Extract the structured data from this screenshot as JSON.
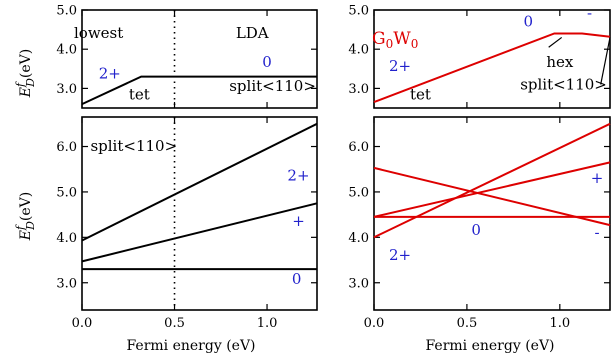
{
  "chart_data": [
    {
      "type": "line",
      "panel": "top-left",
      "xlim": [
        0.0,
        1.27
      ],
      "ylim": [
        2.5,
        5.0
      ],
      "xlabel": "",
      "ylabel_main": "E",
      "ylabel_sup": "f",
      "ylabel_sub": "D",
      "ylabel_unit": "(eV)",
      "yticks": [
        "3.0",
        "4.0",
        "5.0"
      ],
      "ytick_values": [
        3.0,
        4.0,
        5.0
      ],
      "xtick_values": [
        0.0,
        0.5,
        1.0
      ],
      "vline": 0.5,
      "series": [
        {
          "color": "#000000",
          "points": [
            [
              0.0,
              2.6
            ],
            [
              0.32,
              3.3
            ],
            [
              1.27,
              3.3
            ]
          ]
        }
      ],
      "annotations": [
        {
          "text": "lowest",
          "x": 0.09,
          "y": 4.28,
          "color": "#000000"
        },
        {
          "text": "LDA",
          "x": 0.92,
          "y": 4.28,
          "color": "#000000"
        },
        {
          "text": "2+",
          "x": 0.15,
          "y": 3.25,
          "color": "#2222cc"
        },
        {
          "text": "0",
          "x": 1.0,
          "y": 3.55,
          "color": "#2222cc"
        },
        {
          "text": "tet",
          "x": 0.31,
          "y": 2.72,
          "color": "#000000"
        },
        {
          "text": "split<110>",
          "x": 1.03,
          "y": 2.94,
          "color": "#000000"
        }
      ]
    },
    {
      "type": "line",
      "panel": "top-right",
      "xlim": [
        0.0,
        1.27
      ],
      "ylim": [
        2.5,
        5.0
      ],
      "yticks": [
        "3.0",
        "4.0",
        "5.0"
      ],
      "ytick_values": [
        3.0,
        4.0,
        5.0
      ],
      "xtick_values": [
        0.0,
        0.5,
        1.0
      ],
      "label_main": "G",
      "label_sub1": "0",
      "label_mid": "W",
      "label_sub2": "0",
      "series": [
        {
          "color": "#dd0000",
          "points": [
            [
              0.0,
              2.65
            ],
            [
              0.97,
              4.4
            ],
            [
              1.12,
              4.4
            ],
            [
              1.27,
              4.32
            ]
          ]
        }
      ],
      "annotations": [
        {
          "text": "0",
          "x": 0.83,
          "y": 4.58,
          "color": "#2222cc"
        },
        {
          "text": "-",
          "x": 1.16,
          "y": 4.8,
          "color": "#2222cc"
        },
        {
          "text": "2+",
          "x": 0.14,
          "y": 3.45,
          "color": "#2222cc"
        },
        {
          "text": "tet",
          "x": 0.25,
          "y": 2.72,
          "color": "#000000"
        },
        {
          "text": "hex",
          "x": 1.0,
          "y": 3.55,
          "color": "#000000"
        },
        {
          "text": "split<110>",
          "x": 1.02,
          "y": 2.97,
          "color": "#000000"
        }
      ],
      "pointer_lines": [
        {
          "from": [
            1.01,
            4.3
          ],
          "to": [
            0.94,
            4.05
          ]
        },
        {
          "from": [
            1.27,
            4.3
          ],
          "to": [
            1.22,
            3.1
          ]
        }
      ]
    },
    {
      "type": "line",
      "panel": "bottom-left",
      "xlim": [
        0.0,
        1.27
      ],
      "ylim": [
        2.4,
        6.65
      ],
      "xlabel": "Fermi energy (eV)",
      "ylabel_main": "E",
      "ylabel_sup": "f",
      "ylabel_sub": "D",
      "ylabel_unit": "(eV)",
      "yticks": [
        "3.0",
        "4.0",
        "5.0",
        "6.0"
      ],
      "ytick_values": [
        3.0,
        4.0,
        5.0,
        6.0
      ],
      "xticks": [
        "0.0",
        "0.5",
        "1.0"
      ],
      "xtick_values": [
        0.0,
        0.5,
        1.0
      ],
      "vline": 0.5,
      "series": [
        {
          "color": "#000000",
          "points": [
            [
              0.0,
              3.93
            ],
            [
              1.27,
              6.5
            ]
          ]
        },
        {
          "color": "#000000",
          "points": [
            [
              0.0,
              3.47
            ],
            [
              1.27,
              4.75
            ]
          ]
        },
        {
          "color": "#000000",
          "points": [
            [
              0.0,
              3.3
            ],
            [
              1.27,
              3.3
            ]
          ]
        }
      ],
      "annotations": [
        {
          "text": "split<110>",
          "x": 0.28,
          "y": 5.9,
          "color": "#000000"
        },
        {
          "text": "2+",
          "x": 1.17,
          "y": 5.25,
          "color": "#2222cc"
        },
        {
          "text": "+",
          "x": 1.17,
          "y": 4.25,
          "color": "#2222cc"
        },
        {
          "text": "0",
          "x": 1.16,
          "y": 2.97,
          "color": "#2222cc"
        }
      ]
    },
    {
      "type": "line",
      "panel": "bottom-right",
      "xlim": [
        0.0,
        1.27
      ],
      "ylim": [
        2.4,
        6.65
      ],
      "xlabel": "Fermi energy (eV)",
      "yticks": [
        "3.0",
        "4.0",
        "5.0",
        "6.0"
      ],
      "ytick_values": [
        3.0,
        4.0,
        5.0,
        6.0
      ],
      "xticks": [
        "0.0",
        "0.5",
        "1.0"
      ],
      "xtick_values": [
        0.0,
        0.5,
        1.0
      ],
      "series": [
        {
          "color": "#dd0000",
          "points": [
            [
              0.0,
              4.0
            ],
            [
              1.27,
              6.5
            ]
          ]
        },
        {
          "color": "#dd0000",
          "points": [
            [
              0.0,
              4.45
            ],
            [
              1.27,
              5.65
            ]
          ]
        },
        {
          "color": "#dd0000",
          "points": [
            [
              0.0,
              5.53
            ],
            [
              1.27,
              4.27
            ]
          ]
        },
        {
          "color": "#dd0000",
          "points": [
            [
              0.0,
              4.45
            ],
            [
              1.27,
              4.45
            ]
          ]
        }
      ],
      "annotations": [
        {
          "text": "+",
          "x": 1.2,
          "y": 5.2,
          "color": "#2222cc"
        },
        {
          "text": "0",
          "x": 0.55,
          "y": 4.05,
          "color": "#2222cc"
        },
        {
          "text": "-",
          "x": 1.2,
          "y": 4.0,
          "color": "#2222cc"
        },
        {
          "text": "2+",
          "x": 0.14,
          "y": 3.5,
          "color": "#2222cc"
        }
      ]
    }
  ]
}
